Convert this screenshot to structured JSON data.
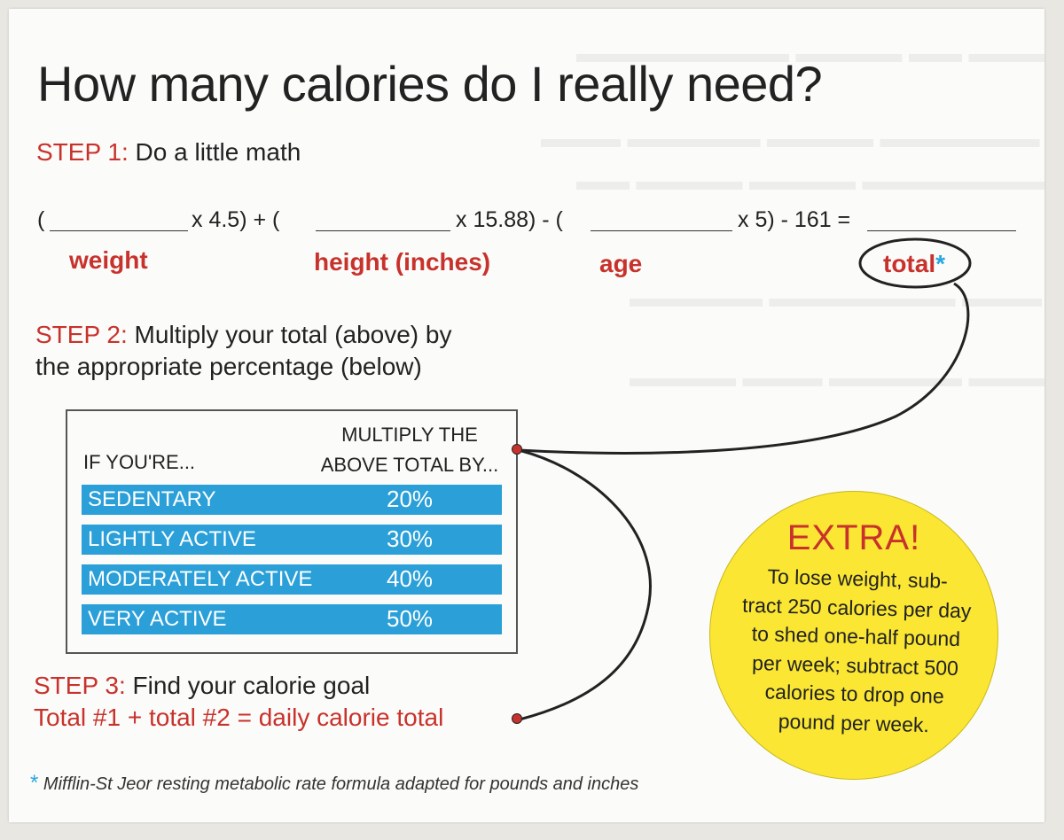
{
  "title": "How many calories do I really need?",
  "step1": {
    "number": "STEP 1:",
    "text": "Do a little math"
  },
  "equation": {
    "open1": "(",
    "mult1": "x 4.5) + (",
    "mult2": "x 15.88) - (",
    "mult3": "x 5) - 161 ="
  },
  "labels": {
    "weight": "weight",
    "height": "height (inches)",
    "age": "age",
    "total": "total",
    "total_mark": "*"
  },
  "step2": {
    "number": "STEP 2:",
    "text_line1": "Multiply your total (above) by",
    "text_line2": "the appropriate percentage (below)"
  },
  "table": {
    "header_left": "IF YOU'RE...",
    "header_right_line1": "MULTIPLY THE",
    "header_right_line2": "ABOVE TOTAL BY...",
    "rows": [
      {
        "activity": "SEDENTARY",
        "percent": "20%"
      },
      {
        "activity": "LIGHTLY ACTIVE",
        "percent": "30%"
      },
      {
        "activity": "MODERATELY ACTIVE",
        "percent": "40%"
      },
      {
        "activity": "VERY ACTIVE",
        "percent": "50%"
      }
    ]
  },
  "step3": {
    "number": "STEP 3:",
    "text": "Find your calorie goal",
    "formula": "Total #1 + total #2 = daily calorie total"
  },
  "extra": {
    "title": "EXTRA!",
    "lines": [
      "To lose weight, sub-",
      "tract 250 calories per day",
      "to shed one-half pound",
      "per week; subtract 500",
      "calories to drop one",
      "pound per week."
    ]
  },
  "footnote": {
    "mark": "*",
    "text": "Mifflin-St Jeor resting metabolic rate formula adapted for pounds and inches"
  },
  "colors": {
    "accent_red": "#c8322c",
    "table_blue": "#2a9fd8",
    "extra_yellow": "#fae633",
    "asterisk_blue": "#29a6dd"
  }
}
